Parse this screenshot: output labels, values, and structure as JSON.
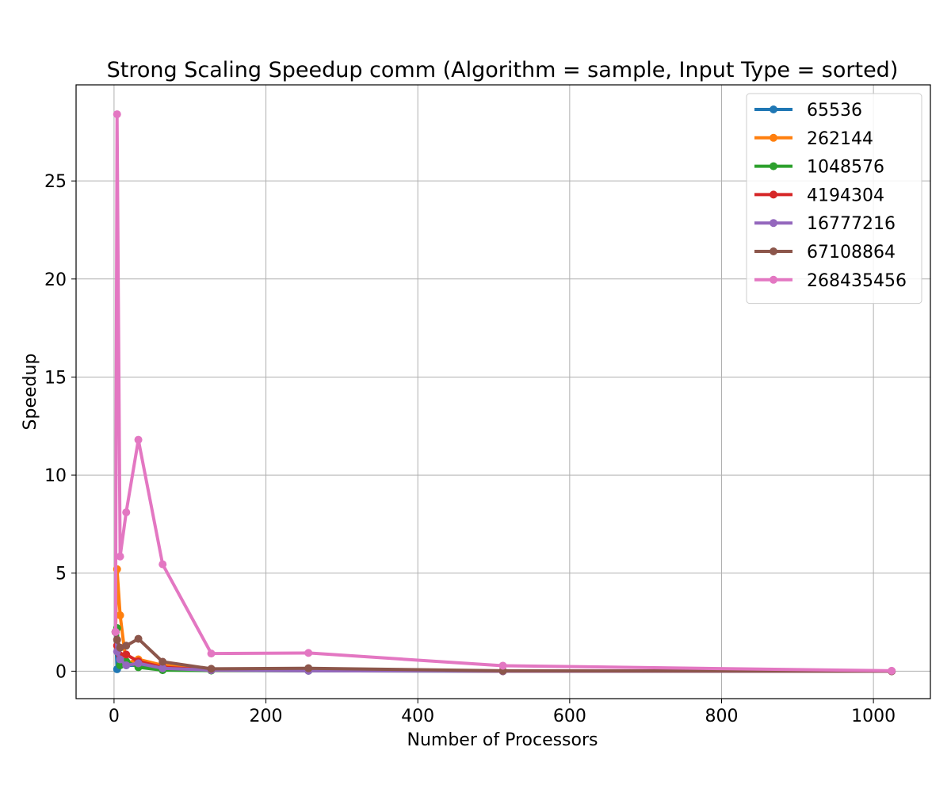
{
  "chart_data": {
    "type": "line",
    "title": "Strong Scaling Speedup comm (Algorithm = sample, Input Type = sorted)",
    "xlabel": "Number of Processors",
    "ylabel": "Speedup",
    "xlim": [
      -50,
      1075
    ],
    "ylim": [
      -1.4,
      29.9
    ],
    "xticks": [
      0,
      200,
      400,
      600,
      800,
      1000
    ],
    "yticks": [
      0,
      5,
      10,
      15,
      20,
      25
    ],
    "grid": true,
    "legend_position": "top-right",
    "series": [
      {
        "name": "65536",
        "color": "#1f77b4",
        "x": [
          2,
          4,
          8,
          16,
          32,
          64,
          128,
          256,
          512,
          1024
        ],
        "y": [
          2.0,
          0.1,
          0.5,
          0.3,
          0.3,
          0.15,
          0.05,
          0.05,
          0.0,
          0.0
        ]
      },
      {
        "name": "262144",
        "color": "#ff7f0e",
        "x": [
          2,
          4,
          8,
          16,
          32,
          64,
          128,
          256,
          512,
          1024
        ],
        "y": [
          2.0,
          5.2,
          2.85,
          0.4,
          0.6,
          0.3,
          0.1,
          0.1,
          0.0,
          0.0
        ]
      },
      {
        "name": "1048576",
        "color": "#2ca02c",
        "x": [
          2,
          4,
          8,
          16,
          32,
          64,
          128,
          256,
          512,
          1024
        ],
        "y": [
          2.0,
          2.2,
          0.3,
          0.5,
          0.2,
          0.05,
          0.03,
          0.02,
          0.0,
          0.0
        ]
      },
      {
        "name": "4194304",
        "color": "#d62728",
        "x": [
          2,
          4,
          8,
          16,
          32,
          64,
          128,
          256,
          512,
          1024
        ],
        "y": [
          2.0,
          1.3,
          0.8,
          0.85,
          0.5,
          0.2,
          0.05,
          0.05,
          0.0,
          0.0
        ]
      },
      {
        "name": "16777216",
        "color": "#9467bd",
        "x": [
          2,
          4,
          8,
          16,
          32,
          64,
          128,
          256,
          512,
          1024
        ],
        "y": [
          2.0,
          1.0,
          0.6,
          0.3,
          0.4,
          0.15,
          0.05,
          0.02,
          0.0,
          0.0
        ]
      },
      {
        "name": "67108864",
        "color": "#8c564b",
        "x": [
          2,
          4,
          8,
          16,
          32,
          64,
          128,
          256,
          512,
          1024
        ],
        "y": [
          2.0,
          1.6,
          1.2,
          1.3,
          1.65,
          0.48,
          0.12,
          0.15,
          0.02,
          0.0
        ]
      },
      {
        "name": "268435456",
        "color": "#e377c2",
        "x": [
          2,
          4,
          8,
          16,
          32,
          64,
          128,
          256,
          512,
          1024
        ],
        "y": [
          2.0,
          28.4,
          5.85,
          8.1,
          11.8,
          5.45,
          0.9,
          0.93,
          0.28,
          0.02
        ]
      }
    ]
  }
}
